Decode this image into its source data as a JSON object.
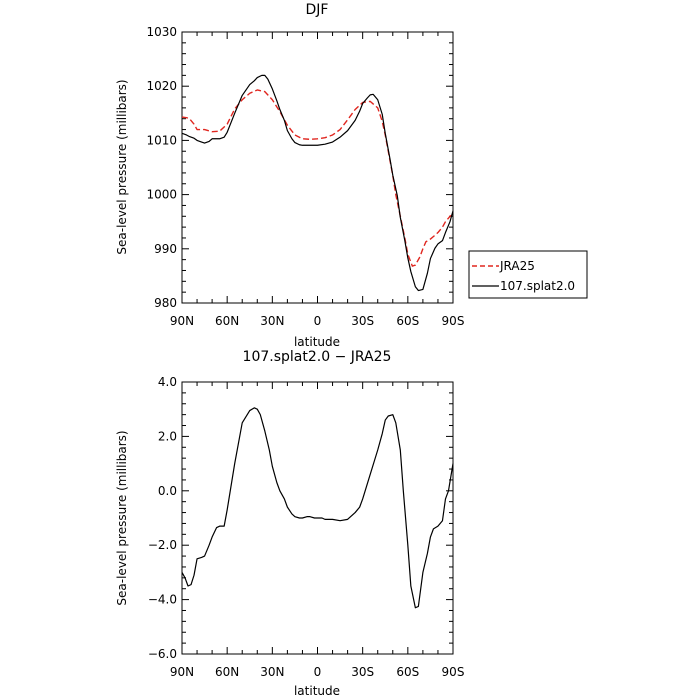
{
  "chart_data": [
    {
      "type": "line",
      "title": "DJF",
      "xlabel": "latitude",
      "ylabel": "Sea-level pressure (millibars)",
      "xlim": [
        90,
        -90
      ],
      "ylim": [
        980,
        1030
      ],
      "x_tick_values": [
        90,
        60,
        30,
        0,
        -30,
        -60,
        -90
      ],
      "x_tick_labels": [
        "90N",
        "60N",
        "30N",
        "0",
        "30S",
        "60S",
        "90S"
      ],
      "y_tick_values": [
        980,
        990,
        1000,
        1010,
        1020,
        1030
      ],
      "y_tick_labels": [
        "980",
        "990",
        "1000",
        "1010",
        "1020",
        "1030"
      ],
      "grid": false,
      "legend_position": "outside-right",
      "series": [
        {
          "name": "JRA25",
          "color": "#e0261f",
          "dash": "dashed",
          "x": [
            90,
            87,
            85,
            82,
            80,
            75,
            70,
            65,
            60,
            55,
            50,
            45,
            40,
            35,
            30,
            25,
            20,
            15,
            10,
            5,
            0,
            -5,
            -10,
            -15,
            -20,
            -25,
            -30,
            -35,
            -40,
            -43,
            -45,
            -48,
            -50,
            -52,
            -55,
            -58,
            -60,
            -63,
            -65,
            -68,
            -70,
            -72,
            -75,
            -78,
            -80,
            -83,
            -85,
            -88,
            -90
          ],
          "y": [
            1014.3,
            1014.2,
            1014.0,
            1013.0,
            1012.0,
            1012.0,
            1011.6,
            1011.7,
            1013.0,
            1015.8,
            1017.5,
            1018.7,
            1019.3,
            1019.0,
            1017.5,
            1015.3,
            1012.8,
            1011.0,
            1010.3,
            1010.2,
            1010.3,
            1010.5,
            1011.0,
            1012.0,
            1013.8,
            1015.7,
            1017.0,
            1017.2,
            1016.0,
            1013.5,
            1011.0,
            1006.5,
            1003.5,
            1000.0,
            996.0,
            992.0,
            989.0,
            986.8,
            987.0,
            988.5,
            990.0,
            991.3,
            991.8,
            992.5,
            993.0,
            994.0,
            995.0,
            996.0,
            996.3
          ]
        },
        {
          "name": "107.splat2.0",
          "color": "#000000",
          "dash": "solid",
          "x": [
            90,
            87,
            85,
            82,
            80,
            77,
            75,
            72,
            70,
            67,
            65,
            62,
            60,
            55,
            50,
            45,
            42,
            40,
            37,
            35,
            33,
            30,
            27,
            25,
            22,
            20,
            17,
            15,
            12,
            10,
            5,
            0,
            -5,
            -10,
            -15,
            -20,
            -25,
            -28,
            -30,
            -33,
            -35,
            -37,
            -40,
            -43,
            -45,
            -48,
            -50,
            -53,
            -55,
            -58,
            -60,
            -62,
            -65,
            -67,
            -70,
            -73,
            -75,
            -78,
            -80,
            -83,
            -85,
            -88,
            -90
          ],
          "y": [
            1011.3,
            1011.0,
            1010.7,
            1010.4,
            1010.0,
            1009.7,
            1009.5,
            1009.8,
            1010.3,
            1010.3,
            1010.3,
            1010.6,
            1011.5,
            1015.0,
            1018.3,
            1020.3,
            1021.0,
            1021.6,
            1022.0,
            1022.0,
            1021.3,
            1019.5,
            1017.3,
            1015.7,
            1013.7,
            1011.8,
            1010.3,
            1009.6,
            1009.2,
            1009.1,
            1009.1,
            1009.1,
            1009.3,
            1009.7,
            1010.6,
            1011.8,
            1013.7,
            1015.4,
            1016.8,
            1017.8,
            1018.4,
            1018.5,
            1017.5,
            1014.8,
            1011.3,
            1006.8,
            1003.6,
            999.8,
            995.8,
            991.5,
            988.3,
            985.8,
            983.0,
            982.3,
            982.5,
            985.5,
            988.2,
            990.1,
            990.9,
            991.5,
            993.0,
            995.0,
            997.0
          ]
        }
      ]
    },
    {
      "type": "line",
      "title": "107.splat2.0 − JRA25",
      "xlabel": "latitude",
      "ylabel": "Sea-level pressure (millibars)",
      "xlim": [
        90,
        -90
      ],
      "ylim": [
        -6.0,
        4.0
      ],
      "x_tick_values": [
        90,
        60,
        30,
        0,
        -30,
        -60,
        -90
      ],
      "x_tick_labels": [
        "90N",
        "60N",
        "30N",
        "0",
        "30S",
        "60S",
        "90S"
      ],
      "y_tick_values": [
        -6,
        -4,
        -2,
        0,
        2,
        4
      ],
      "y_tick_labels": [
        "−6.0",
        "−4.0",
        "−2.0",
        "0.0",
        "2.0",
        "4.0"
      ],
      "grid": false,
      "series": [
        {
          "color": "#000000",
          "dash": "solid",
          "x": [
            90,
            88,
            86,
            84,
            82,
            80,
            77,
            75,
            72,
            70,
            67,
            65,
            62,
            60,
            55,
            50,
            45,
            42,
            40,
            38,
            35,
            32,
            30,
            27,
            25,
            22,
            20,
            17,
            15,
            12,
            10,
            7,
            5,
            2,
            0,
            -3,
            -5,
            -10,
            -15,
            -20,
            -25,
            -28,
            -30,
            -35,
            -40,
            -43,
            -45,
            -47,
            -50,
            -52,
            -55,
            -57,
            -60,
            -62,
            -65,
            -67,
            -70,
            -73,
            -75,
            -77,
            -80,
            -83,
            -85,
            -87,
            -90
          ],
          "y": [
            -3.0,
            -3.2,
            -3.5,
            -3.45,
            -3.1,
            -2.5,
            -2.45,
            -2.4,
            -2.0,
            -1.7,
            -1.35,
            -1.3,
            -1.3,
            -0.7,
            1.0,
            2.5,
            2.95,
            3.05,
            3.0,
            2.8,
            2.2,
            1.5,
            0.9,
            0.3,
            0.0,
            -0.3,
            -0.6,
            -0.85,
            -0.95,
            -1.0,
            -1.0,
            -0.95,
            -0.95,
            -1.0,
            -1.0,
            -1.0,
            -1.05,
            -1.05,
            -1.1,
            -1.05,
            -0.8,
            -0.6,
            -0.3,
            0.6,
            1.5,
            2.1,
            2.6,
            2.75,
            2.8,
            2.5,
            1.5,
            0.0,
            -2.0,
            -3.5,
            -4.3,
            -4.25,
            -3.0,
            -2.3,
            -1.7,
            -1.4,
            -1.3,
            -1.1,
            -0.3,
            0.0,
            1.0
          ]
        }
      ]
    }
  ]
}
